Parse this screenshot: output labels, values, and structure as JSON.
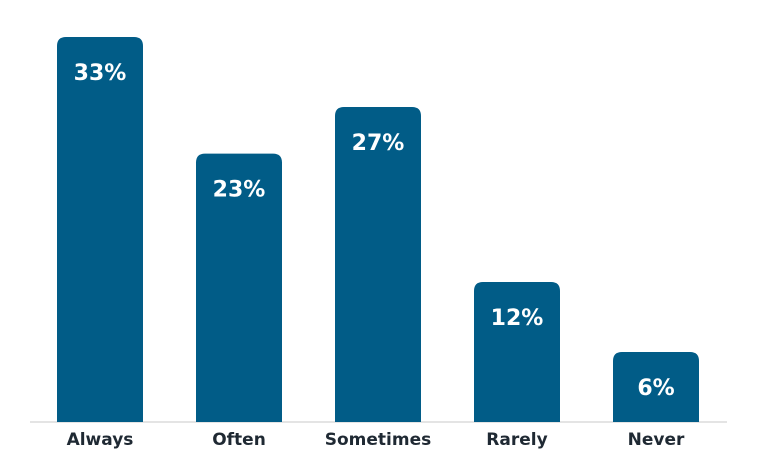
{
  "chart_data": {
    "type": "bar",
    "categories": [
      "Always",
      "Often",
      "Sometimes",
      "Rarely",
      "Never"
    ],
    "values": [
      33,
      23,
      27,
      12,
      6
    ],
    "data_labels": [
      "33%",
      "23%",
      "27%",
      "12%",
      "6%"
    ],
    "ylim": [
      0,
      33
    ],
    "grid": false,
    "legend": "none",
    "colors": {
      "bar": "#015C87",
      "axis": "#C8C8C8",
      "label_text": "#FFFFFF",
      "category_text": "#1F2933"
    }
  }
}
